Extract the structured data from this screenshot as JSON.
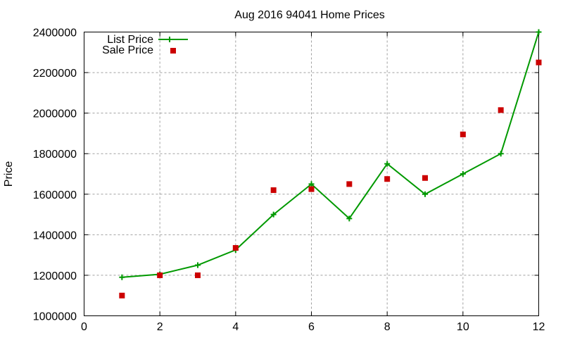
{
  "chart_data": {
    "type": "line",
    "title": "Aug 2016 94041 Home Prices",
    "xlabel": "",
    "ylabel": "Price",
    "xlim": [
      0,
      12
    ],
    "ylim": [
      1000000,
      2400000
    ],
    "x_ticks": [
      0,
      2,
      4,
      6,
      8,
      10,
      12
    ],
    "y_ticks": [
      1000000,
      1200000,
      1400000,
      1600000,
      1800000,
      2000000,
      2200000,
      2400000
    ],
    "grid": true,
    "legend_position": "top-left",
    "x": [
      1,
      2,
      3,
      4,
      5,
      6,
      7,
      8,
      9,
      10,
      11,
      12
    ],
    "series": [
      {
        "name": "List Price",
        "style": "linespoints",
        "marker": "plus",
        "color": "#009900",
        "values": [
          1190000,
          1205000,
          1250000,
          1325000,
          1500000,
          1650000,
          1480000,
          1750000,
          1600000,
          1700000,
          1800000,
          2400000
        ]
      },
      {
        "name": "Sale Price",
        "style": "points",
        "marker": "square",
        "color": "#cc0000",
        "values": [
          1100000,
          1200000,
          1200000,
          1335000,
          1620000,
          1625000,
          1650000,
          1675000,
          1680000,
          1895000,
          2015000,
          2250000
        ]
      }
    ]
  }
}
